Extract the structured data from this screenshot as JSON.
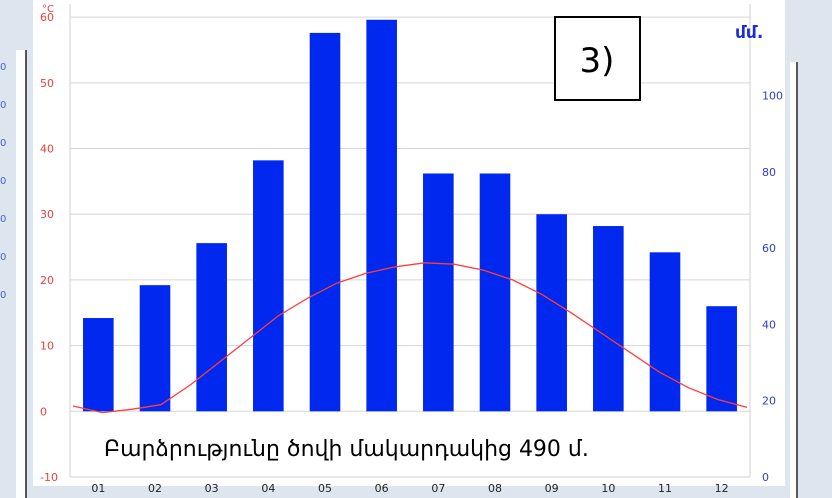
{
  "badge": {
    "text": "3)"
  },
  "left_edge_labels": [
    "0",
    "0",
    "0",
    "0",
    "0",
    "0",
    "0"
  ],
  "chart_data": {
    "type": "bar",
    "categories": [
      "01",
      "02",
      "03",
      "04",
      "05",
      "06",
      "07",
      "08",
      "09",
      "10",
      "11",
      "12"
    ],
    "series": [
      {
        "values": [
          14.2,
          19.2,
          25.6,
          38.2,
          57.6,
          59.6,
          36.2,
          36.2,
          30.0,
          28.2,
          24.2,
          16.0
        ],
        "axis": "left",
        "kind": "bar",
        "color": "#0028ee"
      },
      {
        "points": [
          [
            0,
            0.8
          ],
          [
            0.5,
            -0.2
          ],
          [
            1,
            0.3
          ],
          [
            1.5,
            1.0
          ],
          [
            2,
            4.0
          ],
          [
            2.5,
            7.5
          ],
          [
            3,
            11.0
          ],
          [
            3.5,
            14.5
          ],
          [
            4,
            17.2
          ],
          [
            4.5,
            19.5
          ],
          [
            5,
            21.0
          ],
          [
            5.5,
            22.0
          ],
          [
            6,
            22.6
          ],
          [
            6.5,
            22.4
          ],
          [
            7,
            21.5
          ],
          [
            7.5,
            20.0
          ],
          [
            8,
            17.8
          ],
          [
            8.5,
            15.0
          ],
          [
            9,
            12.0
          ],
          [
            9.5,
            9.0
          ],
          [
            10,
            6.0
          ],
          [
            10.5,
            3.6
          ],
          [
            11,
            1.8
          ],
          [
            11.5,
            0.6
          ]
        ],
        "axis": "left",
        "kind": "line",
        "color": "#ff3d3d"
      }
    ],
    "ylim_left": [
      -10,
      62
    ],
    "ylim_right": [
      0,
      124
    ],
    "yticks_left": [
      -10,
      0,
      10,
      20,
      30,
      40,
      50,
      60
    ],
    "yticks_right": [
      0,
      20,
      40,
      60,
      80,
      100
    ],
    "ylabel_left": "°C",
    "ylabel_right": "մմ.",
    "grid": true,
    "annotation": "Բարձրությունը ծովի մակարդակից 490 մ."
  }
}
